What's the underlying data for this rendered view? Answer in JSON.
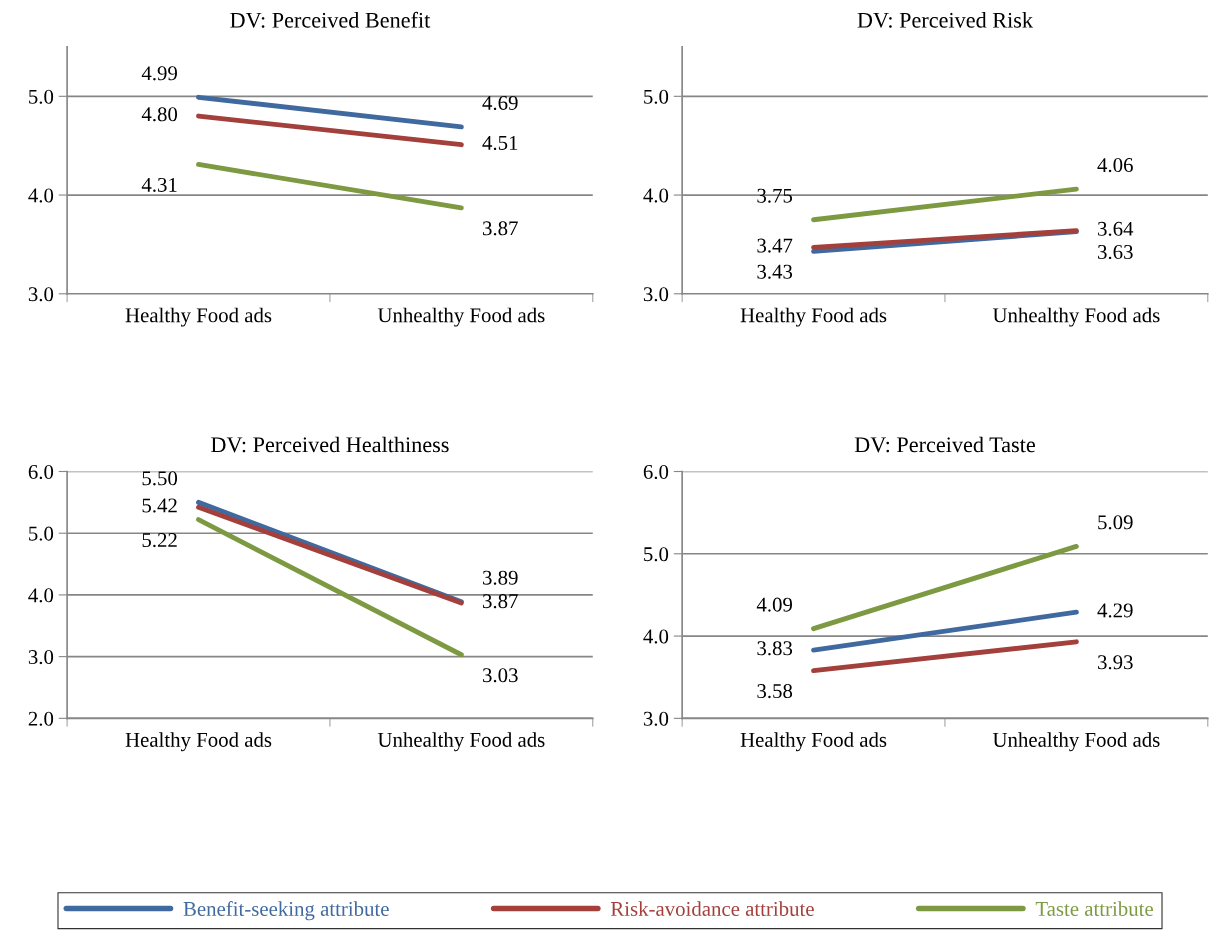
{
  "chart_data": [
    {
      "type": "line",
      "title": "DV: Perceived Benefit",
      "categories": [
        "Healthy Food ads",
        "Unhealthy Food ads"
      ],
      "ylim": [
        3,
        5.5
      ],
      "yticks": [
        {
          "value": 3,
          "label": "3.0"
        },
        {
          "value": 4,
          "label": "4.0"
        },
        {
          "value": 5,
          "label": "5.0"
        }
      ],
      "grid": "y",
      "series": [
        {
          "color": "#40699f",
          "values": [
            4.99,
            4.69
          ],
          "value_labels": [
            "4.99",
            "4.69"
          ]
        },
        {
          "color": "#a3403c",
          "values": [
            4.8,
            4.51
          ],
          "value_labels": [
            "4.80",
            "4.51"
          ]
        },
        {
          "color": "#7d9a42",
          "values": [
            4.31,
            3.87
          ],
          "value_labels": [
            "4.31",
            "3.87"
          ]
        }
      ]
    },
    {
      "type": "line",
      "title": "DV: Perceived Risk",
      "categories": [
        "Healthy Food ads",
        "Unhealthy Food ads"
      ],
      "ylim": [
        3,
        5.5
      ],
      "yticks": [
        {
          "value": 3,
          "label": "3.0"
        },
        {
          "value": 4,
          "label": "4.0"
        },
        {
          "value": 5,
          "label": "5.0"
        }
      ],
      "grid": "y",
      "series": [
        {
          "color": "#40699f",
          "values": [
            3.43,
            3.63
          ],
          "value_labels": [
            "3.43",
            "3.63"
          ]
        },
        {
          "color": "#a3403c",
          "values": [
            3.47,
            3.64
          ],
          "value_labels": [
            "3.47",
            "3.64"
          ]
        },
        {
          "color": "#7d9a42",
          "values": [
            3.75,
            4.06
          ],
          "value_labels": [
            "3.75",
            "4.06"
          ]
        }
      ]
    },
    {
      "type": "line",
      "title": "DV: Perceived Healthiness",
      "categories": [
        "Healthy Food ads",
        "Unhealthy Food ads"
      ],
      "ylim": [
        2,
        6
      ],
      "yticks": [
        {
          "value": 2,
          "label": "2.0"
        },
        {
          "value": 3,
          "label": "3.0"
        },
        {
          "value": 4,
          "label": "4.0"
        },
        {
          "value": 5,
          "label": "5.0"
        },
        {
          "value": 6,
          "label": "6.0"
        }
      ],
      "grid": "y",
      "series": [
        {
          "color": "#40699f",
          "values": [
            5.5,
            3.89
          ],
          "value_labels": [
            "5.50",
            "3.89"
          ]
        },
        {
          "color": "#a3403c",
          "values": [
            5.42,
            3.87
          ],
          "value_labels": [
            "5.42",
            "3.87"
          ]
        },
        {
          "color": "#7d9a42",
          "values": [
            5.22,
            3.03
          ],
          "value_labels": [
            "5.22",
            "3.03"
          ]
        }
      ]
    },
    {
      "type": "line",
      "title": "DV: Perceived Taste",
      "categories": [
        "Healthy Food ads",
        "Unhealthy Food ads"
      ],
      "ylim": [
        3,
        6
      ],
      "yticks": [
        {
          "value": 3,
          "label": "3.0"
        },
        {
          "value": 4,
          "label": "4.0"
        },
        {
          "value": 5,
          "label": "5.0"
        },
        {
          "value": 6,
          "label": "6.0"
        }
      ],
      "grid": "y",
      "legend": "bottom",
      "series": [
        {
          "name": "Benefit-seeking attribute",
          "color": "#40699f",
          "values": [
            3.83,
            4.29
          ],
          "value_labels": [
            "3.83",
            "4.29"
          ]
        },
        {
          "name": "Risk-avoidance attribute",
          "color": "#a3403c",
          "values": [
            3.58,
            3.93
          ],
          "value_labels": [
            "3.58",
            "3.93"
          ]
        },
        {
          "name": "Taste attribute",
          "color": "#7d9a42",
          "values": [
            4.09,
            5.09
          ],
          "value_labels": [
            "4.09",
            "5.09"
          ]
        }
      ]
    }
  ]
}
